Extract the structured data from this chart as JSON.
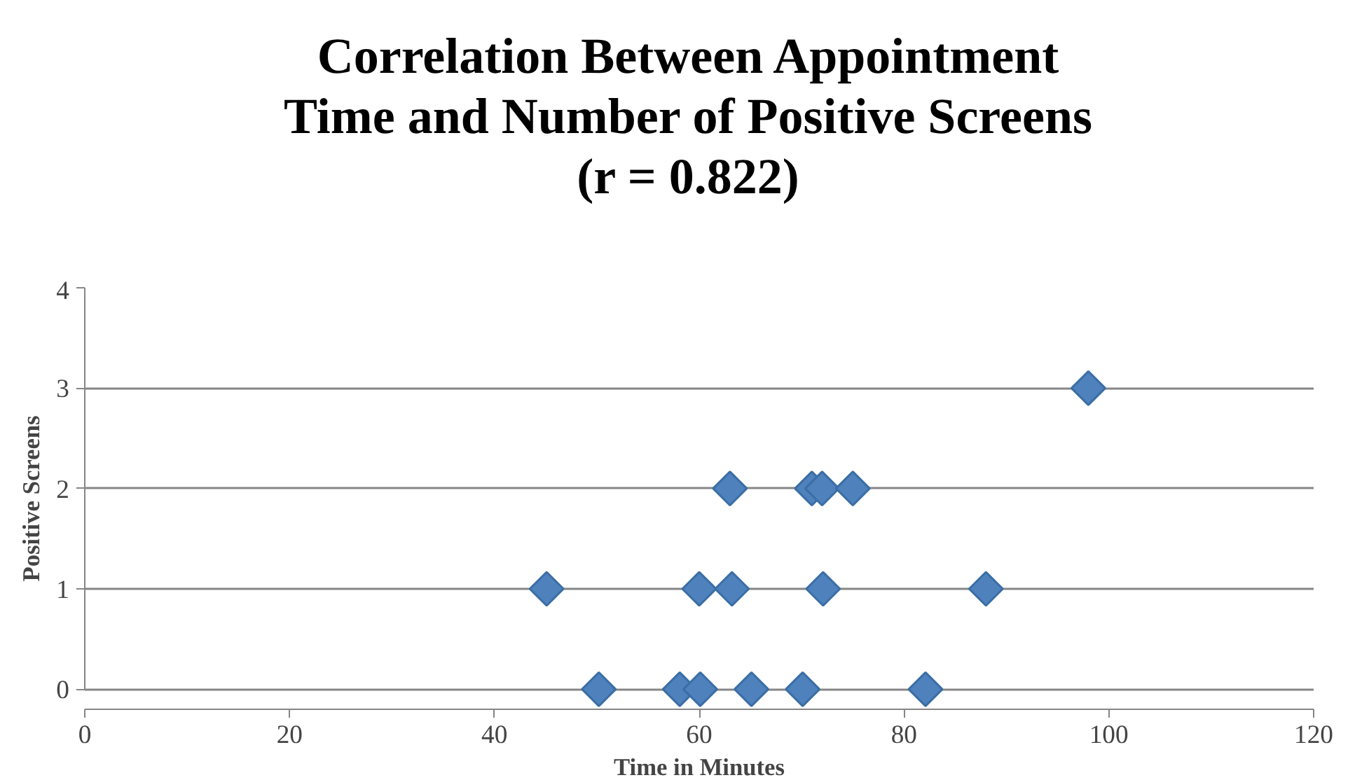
{
  "chart_data": {
    "type": "scatter",
    "title": "Correlation Between Appointment\nTime and Number of Positive Screens\n(r = 0.822)",
    "xlabel": "Time in Minutes",
    "ylabel": "Positive Screens",
    "x": [
      50.2,
      58.1,
      60.1,
      65.1,
      70.1,
      82.1,
      45.1,
      60,
      63.2,
      72.1,
      88,
      63,
      71,
      72,
      75,
      98
    ],
    "series": [
      {
        "color": "#4f81bd",
        "values": [
          0,
          0,
          0,
          0,
          0,
          0,
          1,
          1,
          1,
          1,
          1,
          2,
          2,
          2,
          2,
          3
        ]
      }
    ],
    "xlim": [
      0,
      120
    ],
    "xticks": [
      0,
      20,
      40,
      60,
      80,
      100,
      120
    ],
    "ylim": [
      0,
      4
    ],
    "yticks": [
      0,
      1,
      2,
      3,
      4
    ],
    "grid": "y",
    "marker": "diamond"
  }
}
